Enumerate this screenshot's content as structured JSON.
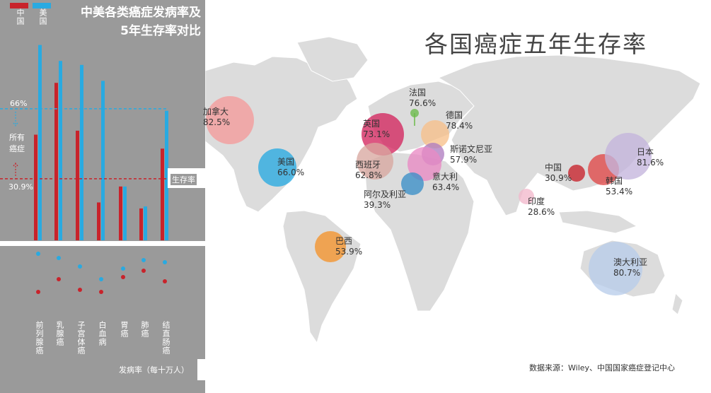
{
  "colors": {
    "china": "#c8232b",
    "usa": "#29aae1",
    "panel": "#9a9a9a",
    "land": "#dcdcdc"
  },
  "legend": {
    "china": "中国",
    "usa": "美国"
  },
  "left_title_line1": "中美各类癌症发病率及",
  "left_title_line2": "5年生存率对比",
  "map_title": "各国癌症五年生存率",
  "source": "数据来源：Wiley、中国国家癌症登记中心",
  "labels": {
    "usa_all": "66%",
    "all_cancer": "所有\n癌症",
    "all_line1": "所有",
    "all_line2": "癌症",
    "china_all": "30.9%",
    "survival_rate": "生存率",
    "incidence": "发病率（每十万人）"
  },
  "chart_data": [
    {
      "type": "bar",
      "title": "中美各类癌症发病率及5年生存率对比",
      "ylabel": "生存率",
      "categories": [
        "前列腺癌",
        "乳腺癌",
        "子宫体癌",
        "白血病",
        "胃癌",
        "肺癌",
        "结直肠癌"
      ],
      "series": [
        {
          "name": "中国",
          "values": [
            53,
            79,
            55,
            19,
            27,
            16,
            46
          ]
        },
        {
          "name": "美国",
          "values": [
            98,
            90,
            88,
            80,
            27,
            17,
            65
          ]
        }
      ],
      "reference_lines": [
        {
          "name": "美国",
          "label": "66%",
          "value": 66
        },
        {
          "name": "中国",
          "label": "30.9%",
          "value": 30.9
        }
      ],
      "ylim": [
        0,
        100
      ]
    },
    {
      "type": "scatter",
      "title": "发病率（每十万人）",
      "categories": [
        "前列腺癌",
        "乳腺癌",
        "子宫体癌",
        "白血病",
        "胃癌",
        "肺癌",
        "结直肠癌"
      ],
      "series": [
        {
          "name": "中国",
          "values": [
            0.9,
            1.5,
            1.0,
            0.9,
            1.6,
            1.9,
            1.4
          ]
        },
        {
          "name": "美国",
          "values": [
            2.7,
            2.5,
            2.1,
            1.5,
            2.0,
            2.4,
            2.3
          ]
        }
      ]
    },
    {
      "type": "scatter",
      "title": "各国癌症五年生存率",
      "points": [
        {
          "country": "加拿大",
          "value": "82.5%",
          "v": 82.5,
          "color": "#f59b9b"
        },
        {
          "country": "美国",
          "value": "66.0%",
          "v": 66.0,
          "color": "#29aae1"
        },
        {
          "country": "巴西",
          "value": "53.9%",
          "v": 53.9,
          "color": "#f5932c"
        },
        {
          "country": "英国",
          "value": "73.1%",
          "v": 73.1,
          "color": "#d4275f"
        },
        {
          "country": "法国",
          "value": "76.6%",
          "v": 76.6,
          "color": "#6cbb4a"
        },
        {
          "country": "德国",
          "value": "78.4%",
          "v": 78.4,
          "color": "#f7c08a"
        },
        {
          "country": "斯诺文尼亚",
          "value": "57.9%",
          "v": 57.9,
          "color": "#b07ec0"
        },
        {
          "country": "西班牙",
          "value": "62.8%",
          "v": 62.8,
          "color": "#d9a8a0"
        },
        {
          "country": "意大利",
          "value": "63.4%",
          "v": 63.4,
          "color": "#e98bc4"
        },
        {
          "country": "阿尔及利亚",
          "value": "39.3%",
          "v": 39.3,
          "color": "#3b8fc8"
        },
        {
          "country": "中国",
          "value": "30.9%",
          "v": 30.9,
          "color": "#c8232b"
        },
        {
          "country": "韩国",
          "value": "53.4%",
          "v": 53.4,
          "color": "#e04848"
        },
        {
          "country": "日本",
          "value": "81.6%",
          "v": 81.6,
          "color": "#c4b5dd"
        },
        {
          "country": "印度",
          "value": "28.6%",
          "v": 28.6,
          "color": "#f2b8cc"
        },
        {
          "country": "澳大利亚",
          "value": "80.7%",
          "v": 80.7,
          "color": "#b8cdea"
        }
      ]
    }
  ]
}
